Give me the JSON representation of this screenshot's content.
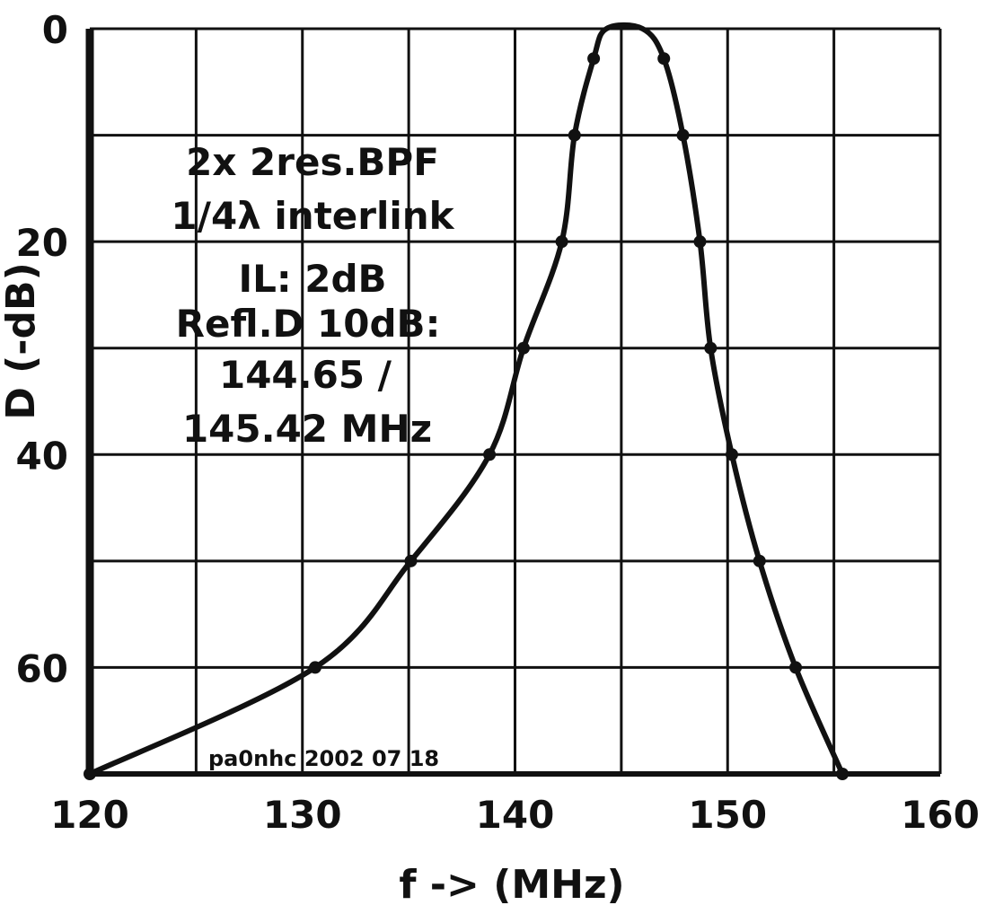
{
  "chart_data": {
    "type": "line",
    "title": "",
    "xlabel": "f -> (MHz)",
    "ylabel": "D (-dB)",
    "xlim": [
      120,
      160
    ],
    "ylim": [
      0,
      70
    ],
    "y_inverted": true,
    "grid": true,
    "x_ticks": [
      120,
      130,
      140,
      150,
      160
    ],
    "y_ticks": [
      0,
      20,
      40,
      60
    ],
    "x_tick_labels": [
      "120",
      "130",
      "140",
      "150",
      "160"
    ],
    "y_tick_labels": [
      "0",
      "20",
      "40",
      "60"
    ],
    "series": [
      {
        "name": "",
        "x": [
          120,
          130.6,
          135.1,
          138.8,
          140.4,
          142.2,
          142.8,
          143.7,
          144.3,
          146.0,
          147.0,
          147.9,
          148.7,
          149.2,
          150.2,
          151.5,
          153.2,
          155.4
        ],
        "y": [
          70,
          60,
          50,
          40,
          30,
          20,
          10,
          2.8,
          0,
          0,
          2.8,
          10,
          20,
          30,
          40,
          50,
          60,
          70
        ],
        "markers": [
          true,
          true,
          true,
          true,
          true,
          true,
          true,
          true,
          false,
          false,
          true,
          true,
          true,
          true,
          true,
          true,
          true,
          true
        ]
      }
    ],
    "annotations": {
      "line1": "2x  2res.BPF",
      "line2": "1/4λ interlink",
      "line3": "IL: 2dB",
      "line4": "Refl.D 10dB:",
      "line5": "144.65 /",
      "line6": "145.42 MHz",
      "credit": "pa0nhc 2002 07 18"
    }
  }
}
